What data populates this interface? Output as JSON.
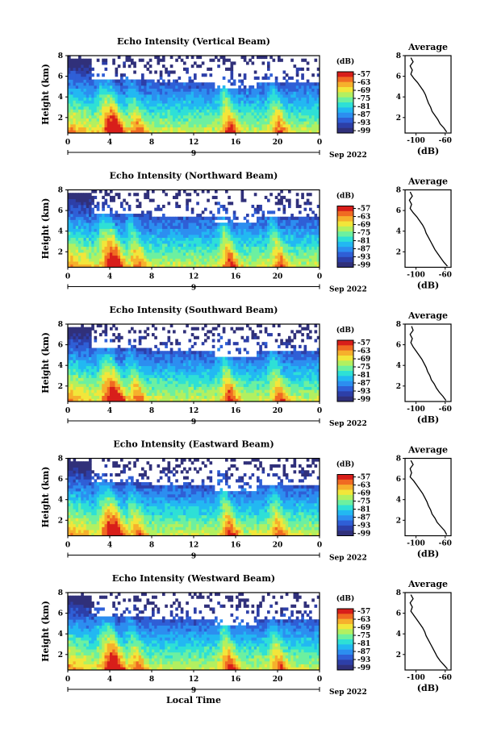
{
  "colors": {
    "colormap": [
      "#30307a",
      "#2d3fa8",
      "#2f5fd6",
      "#2c8ef0",
      "#22b8f2",
      "#2ee0d6",
      "#6cf0a0",
      "#b2f060",
      "#f2e63a",
      "#f6b02c",
      "#f06a22",
      "#d81e1a"
    ],
    "background": "#ffffff",
    "line": "#000000"
  },
  "chart_data": [
    {
      "type": "heatmap",
      "title": "Echo Intensity (Vertical Beam)",
      "ylabel": "Height (km)",
      "xlabel": "",
      "x_ticks": [
        "0",
        "4",
        "8",
        "12",
        "16",
        "20",
        "0"
      ],
      "x_range_hours": [
        0,
        24
      ],
      "day_label": "9",
      "date_label": "Sep 2022",
      "y_ticks": [
        "8",
        "6",
        "4",
        "2"
      ],
      "ylim_km": [
        0.5,
        8
      ],
      "colorbar_label": "(dB)",
      "colorbar_ticks": [
        "-57",
        "-63",
        "-69",
        "-75",
        "-81",
        "-87",
        "-93",
        "-99"
      ],
      "profile": {
        "title": "Average",
        "xlabel": "(dB)",
        "x_ticks": [
          "-100",
          "-60"
        ],
        "xlim": [
          -115,
          -52
        ],
        "y_ticks": [
          "8",
          "6",
          "4",
          "2"
        ],
        "ylim": [
          0.5,
          8
        ],
        "height_km": [
          0.6,
          1.0,
          1.4,
          1.8,
          2.2,
          2.6,
          3.0,
          3.4,
          3.8,
          4.2,
          4.6,
          5.0,
          5.4,
          5.8,
          6.2,
          6.6,
          7.0,
          7.4,
          7.8
        ],
        "value_db": [
          -58,
          -62,
          -67,
          -70,
          -74,
          -78,
          -80,
          -83,
          -85,
          -87,
          -90,
          -94,
          -98,
          -103,
          -107,
          -105,
          -108,
          -104,
          -107
        ]
      }
    },
    {
      "type": "heatmap",
      "title": "Echo Intensity (Northward Beam)",
      "ylabel": "Height (km)",
      "xlabel": "",
      "x_ticks": [
        "0",
        "4",
        "8",
        "12",
        "16",
        "20",
        "0"
      ],
      "x_range_hours": [
        0,
        24
      ],
      "day_label": "9",
      "date_label": "Sep 2022",
      "y_ticks": [
        "8",
        "6",
        "4",
        "2"
      ],
      "ylim_km": [
        0.5,
        8
      ],
      "colorbar_label": "(dB)",
      "colorbar_ticks": [
        "-57",
        "-63",
        "-69",
        "-75",
        "-81",
        "-87",
        "-93",
        "-99"
      ],
      "profile": {
        "title": "Average",
        "xlabel": "(dB)",
        "x_ticks": [
          "-100",
          "-60"
        ],
        "xlim": [
          -115,
          -52
        ],
        "y_ticks": [
          "8",
          "6",
          "4",
          "2"
        ],
        "ylim": [
          0.5,
          8
        ],
        "height_km": [
          0.6,
          1.0,
          1.4,
          1.8,
          2.2,
          2.6,
          3.0,
          3.4,
          3.8,
          4.2,
          4.6,
          5.0,
          5.4,
          5.8,
          6.2,
          6.6,
          7.0,
          7.4,
          7.8
        ],
        "value_db": [
          -57,
          -62,
          -66,
          -70,
          -74,
          -77,
          -80,
          -83,
          -86,
          -88,
          -91,
          -95,
          -99,
          -104,
          -108,
          -106,
          -109,
          -105,
          -108
        ]
      }
    },
    {
      "type": "heatmap",
      "title": "Echo Intensity (Southward Beam)",
      "ylabel": "Height (km)",
      "xlabel": "",
      "x_ticks": [
        "0",
        "4",
        "8",
        "12",
        "16",
        "20",
        "0"
      ],
      "x_range_hours": [
        0,
        24
      ],
      "day_label": "9",
      "date_label": "Sep 2022",
      "y_ticks": [
        "8",
        "6",
        "4",
        "2"
      ],
      "ylim_km": [
        0.5,
        8
      ],
      "colorbar_label": "(dB)",
      "colorbar_ticks": [
        "-57",
        "-63",
        "-69",
        "-75",
        "-81",
        "-87",
        "-93",
        "-99"
      ],
      "profile": {
        "title": "Average",
        "xlabel": "(dB)",
        "x_ticks": [
          "-100",
          "-60"
        ],
        "xlim": [
          -115,
          -52
        ],
        "y_ticks": [
          "8",
          "6",
          "4",
          "2"
        ],
        "ylim": [
          0.5,
          8
        ],
        "height_km": [
          0.6,
          1.0,
          1.4,
          1.8,
          2.2,
          2.6,
          3.0,
          3.4,
          3.8,
          4.2,
          4.6,
          5.0,
          5.4,
          5.8,
          6.2,
          6.6,
          7.0,
          7.4,
          7.8
        ],
        "value_db": [
          -59,
          -63,
          -68,
          -72,
          -75,
          -79,
          -81,
          -84,
          -86,
          -89,
          -92,
          -96,
          -100,
          -104,
          -107,
          -105,
          -108,
          -104,
          -106
        ]
      }
    },
    {
      "type": "heatmap",
      "title": "Echo Intensity (Eastward Beam)",
      "ylabel": "Height (km)",
      "xlabel": "",
      "x_ticks": [
        "0",
        "4",
        "8",
        "12",
        "16",
        "20",
        "0"
      ],
      "x_range_hours": [
        0,
        24
      ],
      "day_label": "9",
      "date_label": "Sep 2022",
      "y_ticks": [
        "8",
        "6",
        "4",
        "2"
      ],
      "ylim_km": [
        0.5,
        8
      ],
      "colorbar_label": "(dB)",
      "colorbar_ticks": [
        "-57",
        "-63",
        "-69",
        "-75",
        "-81",
        "-87",
        "-93",
        "-99"
      ],
      "profile": {
        "title": "Average",
        "xlabel": "(dB)",
        "x_ticks": [
          "-100",
          "-60"
        ],
        "xlim": [
          -115,
          -52
        ],
        "y_ticks": [
          "8",
          "6",
          "4",
          "2"
        ],
        "ylim": [
          0.5,
          8
        ],
        "height_km": [
          0.6,
          1.0,
          1.4,
          1.8,
          2.2,
          2.6,
          3.0,
          3.4,
          3.8,
          4.2,
          4.6,
          5.0,
          5.4,
          5.8,
          6.2,
          6.6,
          7.0,
          7.4,
          7.8
        ],
        "value_db": [
          -58,
          -61,
          -66,
          -71,
          -74,
          -78,
          -80,
          -83,
          -85,
          -88,
          -91,
          -95,
          -99,
          -103,
          -108,
          -106,
          -108,
          -104,
          -107
        ]
      }
    },
    {
      "type": "heatmap",
      "title": "Echo Intensity (Westward Beam)",
      "ylabel": "Height (km)",
      "xlabel": "Local Time",
      "x_ticks": [
        "0",
        "4",
        "8",
        "12",
        "16",
        "20",
        "0"
      ],
      "x_range_hours": [
        0,
        24
      ],
      "day_label": "9",
      "date_label": "Sep 2022",
      "y_ticks": [
        "8",
        "6",
        "4",
        "2"
      ],
      "ylim_km": [
        0.5,
        8
      ],
      "colorbar_label": "(dB)",
      "colorbar_ticks": [
        "-57",
        "-63",
        "-69",
        "-75",
        "-81",
        "-87",
        "-93",
        "-99"
      ],
      "profile": {
        "title": "Average",
        "xlabel": "(dB)",
        "x_ticks": [
          "-100",
          "-60"
        ],
        "xlim": [
          -115,
          -52
        ],
        "y_ticks": [
          "8",
          "6",
          "4",
          "2"
        ],
        "ylim": [
          0.5,
          8
        ],
        "height_km": [
          0.6,
          1.0,
          1.4,
          1.8,
          2.2,
          2.6,
          3.0,
          3.4,
          3.8,
          4.2,
          4.6,
          5.0,
          5.4,
          5.8,
          6.2,
          6.6,
          7.0,
          7.4,
          7.8
        ],
        "value_db": [
          -57,
          -62,
          -67,
          -71,
          -74,
          -77,
          -80,
          -83,
          -86,
          -88,
          -91,
          -95,
          -99,
          -103,
          -107,
          -105,
          -108,
          -104,
          -107
        ]
      }
    }
  ]
}
